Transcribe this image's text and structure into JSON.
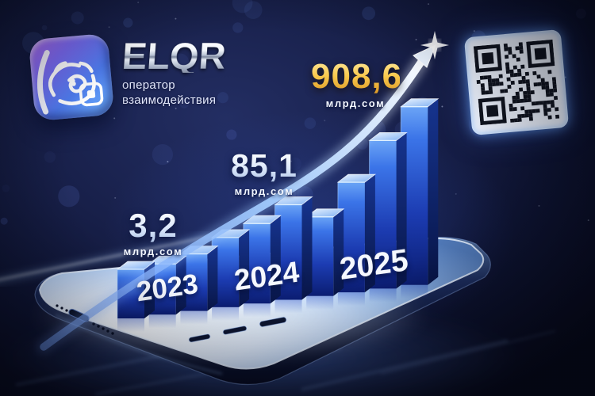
{
  "brand": {
    "name": "ELQR",
    "tagline": [
      "оператор",
      "взаимодействия"
    ]
  },
  "chart_data": {
    "type": "bar",
    "title": "",
    "xlabel": "",
    "ylabel": "",
    "categories": [
      "2023",
      "2024",
      "2025"
    ],
    "values": [
      3.2,
      85.1,
      908.6
    ],
    "value_labels": [
      "3,2",
      "85,1",
      "908,6"
    ],
    "unit_label": "млрд.сом",
    "legend": "none",
    "grid": false,
    "trend_annotation": "upward-growth-arrow",
    "decorative_bar_heights": [
      62,
      64,
      72,
      88,
      101,
      120,
      100,
      139,
      187,
      225
    ]
  },
  "icons": {
    "app_icon": "elqr-app-icon",
    "qr_code": "qr-code",
    "growth_arrow": "growth-arrow-icon",
    "sparkle": "sparkle-icon"
  },
  "colors": {
    "background": "#121a3e",
    "bar_blue": "#2f63d8",
    "bar_highlight": "#9cc8ff",
    "gold_value": "#f5c04a",
    "white_value": "#e9f1fd",
    "screen_glow": "#dfe9fa",
    "qr_glow": "#6eaaff"
  }
}
